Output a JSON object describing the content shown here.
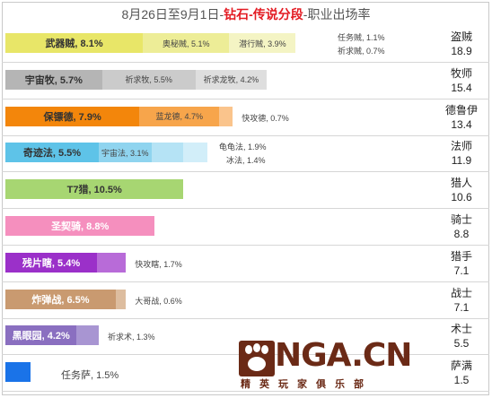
{
  "title": {
    "prefix": "8月26日至9月1日-",
    "highlight": "钻石-传说分段",
    "suffix": "-职业出场率"
  },
  "logo": {
    "brand": "NGA.CN",
    "sub": "精英玩家俱乐部"
  },
  "chart_data": {
    "type": "bar",
    "orientation": "horizontal-stacked",
    "rows": [
      {
        "class": "盗贼",
        "total": 18.9,
        "total_label": "18.9",
        "decks": [
          {
            "label": "武器贼, 8.1%",
            "value": 8.1,
            "color": "#e8e668"
          },
          {
            "label": "奥秘贼, 5.1%",
            "value": 5.1,
            "color": "#eded97"
          },
          {
            "label": "潜行贼, 3.9%",
            "value": 3.9,
            "color": "#f4f4c4"
          }
        ],
        "extra": [
          {
            "label": "任务贼, 1.1%",
            "value": 1.1
          },
          {
            "label": "祈求贼, 0.7%",
            "value": 0.7
          }
        ]
      },
      {
        "class": "牧师",
        "total": 15.4,
        "total_label": "15.4",
        "decks": [
          {
            "label": "宇宙牧, 5.7%",
            "value": 5.7,
            "color": "#b5b5b5"
          },
          {
            "label": "祈求牧, 5.5%",
            "value": 5.5,
            "color": "#cbcbcb"
          },
          {
            "label": "祈求龙牧, 4.2%",
            "value": 4.2,
            "color": "#dedede"
          }
        ],
        "extra": []
      },
      {
        "class": "德鲁伊",
        "total": 13.4,
        "total_label": "13.4",
        "decks": [
          {
            "label": "保镖德, 7.9%",
            "value": 7.9,
            "color": "#f3860b"
          },
          {
            "label": "蓝龙德, 4.7%",
            "value": 4.7,
            "color": "#f7a54b"
          },
          {
            "label": "",
            "value": 0.8,
            "color": "#fac48c"
          }
        ],
        "extra": [
          {
            "label": "快攻德, 0.7%",
            "value": 0.7
          }
        ]
      },
      {
        "class": "法师",
        "total": 11.9,
        "total_label": "11.9",
        "decks": [
          {
            "label": "奇迹法, 5.5%",
            "value": 5.5,
            "color": "#5ec3e8"
          },
          {
            "label": "宇宙法, 3.1%",
            "value": 3.1,
            "color": "#8fd4ef"
          },
          {
            "label": "",
            "value": 1.9,
            "color": "#b5e3f5"
          },
          {
            "label": "",
            "value": 1.4,
            "color": "#d2eef9"
          }
        ],
        "extra": [
          {
            "label": "龟龟法, 1.9%",
            "value": 1.9
          },
          {
            "label": "冰法, 1.4%",
            "value": 1.4
          }
        ]
      },
      {
        "class": "猎人",
        "total": 10.6,
        "total_label": "10.6",
        "decks": [
          {
            "label": "T7猎, 10.5%",
            "value": 10.5,
            "color": "#a7d672"
          }
        ],
        "extra": []
      },
      {
        "class": "骑士",
        "total": 8.8,
        "total_label": "8.8",
        "decks": [
          {
            "label": "圣契骑, 8.8%",
            "value": 8.8,
            "color": "#f58fbe",
            "white": true
          }
        ],
        "extra": []
      },
      {
        "class": "猎手",
        "total": 7.1,
        "total_label": "7.1",
        "decks": [
          {
            "label": "残片瞎, 5.4%",
            "value": 5.4,
            "color": "#9b30c9",
            "white": true
          },
          {
            "label": "",
            "value": 1.7,
            "color": "#b86bd8"
          }
        ],
        "extra": [
          {
            "label": "快攻瞎, 1.7%",
            "value": 1.7
          }
        ]
      },
      {
        "class": "战士",
        "total": 7.1,
        "total_label": "7.1",
        "decks": [
          {
            "label": "炸弹战, 6.5%",
            "value": 6.5,
            "color": "#c99a70",
            "white": true
          },
          {
            "label": "",
            "value": 0.6,
            "color": "#ddbd9f"
          }
        ],
        "extra": [
          {
            "label": "大哥战, 0.6%",
            "value": 0.6
          }
        ]
      },
      {
        "class": "术士",
        "total": 5.5,
        "total_label": "5.5",
        "decks": [
          {
            "label": "黑眼园, 4.2%",
            "value": 4.2,
            "color": "#8a6fc0",
            "white": true
          },
          {
            "label": "",
            "value": 1.3,
            "color": "#a895d2"
          }
        ],
        "extra": [
          {
            "label": "祈求术, 1.3%",
            "value": 1.3
          }
        ]
      },
      {
        "class": "萨满",
        "total": 1.5,
        "total_label": "1.5",
        "decks": [
          {
            "label": "",
            "value": 1.5,
            "color": "#1a73e8"
          }
        ],
        "extra": [
          {
            "label": "任务萨, 1.5%",
            "value": 1.5
          }
        ]
      }
    ]
  }
}
